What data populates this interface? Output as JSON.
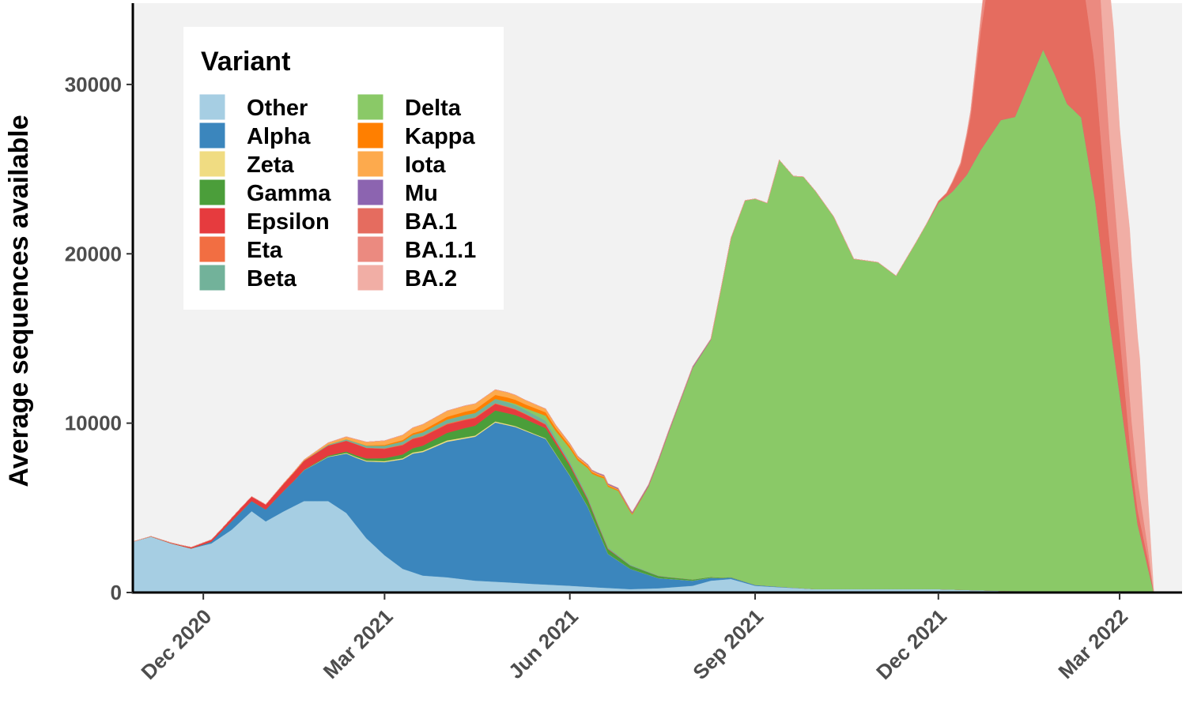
{
  "chart_data": {
    "type": "area",
    "stacked": true,
    "title": "",
    "xlabel": "",
    "ylabel": "Average sequences available",
    "ylim": [
      0,
      34800
    ],
    "xlim": [
      "2020-10-27",
      "2022-04-01"
    ],
    "y_ticks": [
      0,
      10000,
      20000,
      30000
    ],
    "y_tick_labels": [
      "0",
      "10000",
      "20000",
      "30000"
    ],
    "x_ticks": [
      "2020-12-01",
      "2021-03-01",
      "2021-06-01",
      "2021-09-01",
      "2021-12-01",
      "2022-03-01"
    ],
    "x_tick_labels": [
      "Dec 2020",
      "Mar 2021",
      "Jun 2021",
      "Sep 2021",
      "Dec 2021",
      "Mar 2022"
    ],
    "grid": false,
    "legend": {
      "title": "Variant",
      "position": "top-left",
      "columns": 2
    },
    "series": [
      {
        "name": "Other",
        "color": "#a6cee3",
        "points": [
          [
            "2020-10-27",
            3000
          ],
          [
            "2020-11-05",
            3300
          ],
          [
            "2020-11-15",
            2900
          ],
          [
            "2020-11-25",
            2600
          ],
          [
            "2020-12-05",
            2900
          ],
          [
            "2020-12-15",
            3700
          ],
          [
            "2020-12-25",
            4800
          ],
          [
            "2021-01-01",
            4200
          ],
          [
            "2021-01-10",
            4800
          ],
          [
            "2021-01-20",
            5400
          ],
          [
            "2021-02-01",
            5400
          ],
          [
            "2021-02-10",
            4700
          ],
          [
            "2021-02-20",
            3200
          ],
          [
            "2021-03-01",
            2200
          ],
          [
            "2021-03-10",
            1400
          ],
          [
            "2021-03-20",
            1000
          ],
          [
            "2021-04-01",
            900
          ],
          [
            "2021-04-15",
            700
          ],
          [
            "2021-05-01",
            600
          ],
          [
            "2021-05-15",
            500
          ],
          [
            "2021-06-01",
            400
          ],
          [
            "2021-06-15",
            300
          ],
          [
            "2021-07-01",
            200
          ],
          [
            "2021-07-15",
            250
          ],
          [
            "2021-08-01",
            400
          ],
          [
            "2021-08-10",
            700
          ],
          [
            "2021-08-20",
            800
          ],
          [
            "2021-09-01",
            400
          ],
          [
            "2021-09-15",
            300
          ],
          [
            "2021-10-01",
            200
          ],
          [
            "2021-11-01",
            200
          ],
          [
            "2021-12-01",
            200
          ],
          [
            "2022-01-01",
            100
          ],
          [
            "2022-02-01",
            50
          ],
          [
            "2022-03-01",
            50
          ],
          [
            "2022-03-18",
            0
          ]
        ]
      },
      {
        "name": "Alpha",
        "color": "#3b86bd",
        "points": [
          [
            "2020-10-27",
            0
          ],
          [
            "2020-11-25",
            0
          ],
          [
            "2020-12-05",
            100
          ],
          [
            "2020-12-15",
            500
          ],
          [
            "2020-12-25",
            600
          ],
          [
            "2021-01-01",
            700
          ],
          [
            "2021-01-15",
            1500
          ],
          [
            "2021-02-01",
            2600
          ],
          [
            "2021-02-15",
            4000
          ],
          [
            "2021-03-01",
            5500
          ],
          [
            "2021-03-15",
            7000
          ],
          [
            "2021-04-01",
            8000
          ],
          [
            "2021-04-15",
            8500
          ],
          [
            "2021-04-25",
            9400
          ],
          [
            "2021-05-05",
            9200
          ],
          [
            "2021-05-20",
            8600
          ],
          [
            "2021-06-01",
            6500
          ],
          [
            "2021-06-10",
            4700
          ],
          [
            "2021-06-20",
            2000
          ],
          [
            "2021-07-01",
            1200
          ],
          [
            "2021-07-15",
            600
          ],
          [
            "2021-08-01",
            300
          ],
          [
            "2021-08-15",
            100
          ],
          [
            "2021-09-01",
            50
          ],
          [
            "2021-10-01",
            0
          ],
          [
            "2022-03-18",
            0
          ]
        ]
      },
      {
        "name": "Zeta",
        "color": "#f0dc82",
        "points": [
          [
            "2020-10-27",
            0
          ],
          [
            "2021-01-15",
            0
          ],
          [
            "2021-02-15",
            50
          ],
          [
            "2021-04-01",
            80
          ],
          [
            "2021-05-01",
            60
          ],
          [
            "2021-06-01",
            20
          ],
          [
            "2021-07-01",
            0
          ],
          [
            "2022-03-18",
            0
          ]
        ]
      },
      {
        "name": "Gamma",
        "color": "#4b9e3a",
        "points": [
          [
            "2020-10-27",
            0
          ],
          [
            "2021-01-15",
            0
          ],
          [
            "2021-02-15",
            100
          ],
          [
            "2021-03-15",
            250
          ],
          [
            "2021-04-10",
            550
          ],
          [
            "2021-04-25",
            650
          ],
          [
            "2021-05-10",
            650
          ],
          [
            "2021-05-20",
            600
          ],
          [
            "2021-06-01",
            550
          ],
          [
            "2021-06-15",
            300
          ],
          [
            "2021-07-01",
            200
          ],
          [
            "2021-07-20",
            100
          ],
          [
            "2021-08-10",
            50
          ],
          [
            "2021-09-01",
            0
          ],
          [
            "2022-03-18",
            0
          ]
        ]
      },
      {
        "name": "Epsilon",
        "color": "#e63b3e",
        "points": [
          [
            "2020-10-27",
            0
          ],
          [
            "2020-11-20",
            50
          ],
          [
            "2020-12-10",
            150
          ],
          [
            "2020-12-20",
            250
          ],
          [
            "2021-01-01",
            300
          ],
          [
            "2021-01-15",
            500
          ],
          [
            "2021-02-01",
            600
          ],
          [
            "2021-02-15",
            650
          ],
          [
            "2021-03-01",
            550
          ],
          [
            "2021-03-15",
            550
          ],
          [
            "2021-04-01",
            500
          ],
          [
            "2021-04-15",
            450
          ],
          [
            "2021-05-01",
            350
          ],
          [
            "2021-05-15",
            250
          ],
          [
            "2021-06-01",
            100
          ],
          [
            "2021-06-15",
            50
          ],
          [
            "2021-07-01",
            0
          ],
          [
            "2022-03-18",
            0
          ]
        ]
      },
      {
        "name": "Eta",
        "color": "#f26e42",
        "points": [
          [
            "2020-10-27",
            0
          ],
          [
            "2021-02-01",
            0
          ],
          [
            "2021-03-01",
            30
          ],
          [
            "2021-04-01",
            50
          ],
          [
            "2021-05-01",
            40
          ],
          [
            "2021-06-01",
            20
          ],
          [
            "2021-07-01",
            0
          ],
          [
            "2022-03-18",
            0
          ]
        ]
      },
      {
        "name": "Beta",
        "color": "#72b29a",
        "points": [
          [
            "2020-10-27",
            0
          ],
          [
            "2021-01-15",
            0
          ],
          [
            "2021-02-15",
            100
          ],
          [
            "2021-03-15",
            200
          ],
          [
            "2021-04-10",
            250
          ],
          [
            "2021-05-01",
            250
          ],
          [
            "2021-05-20",
            200
          ],
          [
            "2021-06-10",
            100
          ],
          [
            "2021-07-01",
            50
          ],
          [
            "2021-08-01",
            0
          ],
          [
            "2022-03-18",
            0
          ]
        ]
      },
      {
        "name": "Delta",
        "color": "#8ac967",
        "points": [
          [
            "2020-10-27",
            0
          ],
          [
            "2021-04-25",
            0
          ],
          [
            "2021-05-10",
            100
          ],
          [
            "2021-05-25",
            400
          ],
          [
            "2021-06-05",
            1000
          ],
          [
            "2021-06-12",
            2000
          ],
          [
            "2021-06-18",
            3500
          ],
          [
            "2021-06-25",
            3800
          ],
          [
            "2021-07-02",
            3000
          ],
          [
            "2021-07-10",
            5000
          ],
          [
            "2021-07-20",
            8500
          ],
          [
            "2021-08-01",
            12500
          ],
          [
            "2021-08-10",
            14000
          ],
          [
            "2021-08-20",
            20000
          ],
          [
            "2021-08-27",
            22500
          ],
          [
            "2021-09-01",
            22800
          ],
          [
            "2021-09-07",
            22600
          ],
          [
            "2021-09-13",
            25200
          ],
          [
            "2021-09-20",
            24300
          ],
          [
            "2021-09-25",
            24300
          ],
          [
            "2021-10-01",
            23500
          ],
          [
            "2021-10-10",
            22000
          ],
          [
            "2021-10-20",
            19500
          ],
          [
            "2021-11-01",
            19300
          ],
          [
            "2021-11-10",
            18500
          ],
          [
            "2021-11-20",
            20500
          ],
          [
            "2021-12-01",
            22800
          ],
          [
            "2021-12-08",
            23500
          ],
          [
            "2021-12-15",
            24500
          ],
          [
            "2021-12-22",
            26000
          ],
          [
            "2022-01-01",
            27800
          ],
          [
            "2022-01-08",
            28000
          ],
          [
            "2022-01-15",
            30000
          ],
          [
            "2022-01-22",
            32000
          ],
          [
            "2022-01-28",
            30500
          ],
          [
            "2022-02-03",
            28800
          ],
          [
            "2022-02-10",
            28000
          ],
          [
            "2022-02-17",
            23000
          ],
          [
            "2022-02-24",
            16000
          ],
          [
            "2022-03-03",
            10000
          ],
          [
            "2022-03-10",
            4000
          ],
          [
            "2022-03-18",
            0
          ]
        ]
      },
      {
        "name": "Kappa",
        "color": "#ff7f00",
        "points": [
          [
            "2020-10-27",
            0
          ],
          [
            "2021-02-15",
            0
          ],
          [
            "2021-03-15",
            100
          ],
          [
            "2021-04-10",
            200
          ],
          [
            "2021-05-01",
            250
          ],
          [
            "2021-05-20",
            200
          ],
          [
            "2021-06-10",
            100
          ],
          [
            "2021-07-01",
            50
          ],
          [
            "2021-08-01",
            0
          ],
          [
            "2022-03-18",
            0
          ]
        ]
      },
      {
        "name": "Iota",
        "color": "#fdaa4d",
        "points": [
          [
            "2020-10-27",
            0
          ],
          [
            "2021-01-01",
            0
          ],
          [
            "2021-01-20",
            50
          ],
          [
            "2021-02-10",
            150
          ],
          [
            "2021-03-01",
            250
          ],
          [
            "2021-03-20",
            350
          ],
          [
            "2021-04-10",
            350
          ],
          [
            "2021-05-01",
            300
          ],
          [
            "2021-05-20",
            200
          ],
          [
            "2021-06-05",
            100
          ],
          [
            "2021-06-20",
            50
          ],
          [
            "2021-07-10",
            0
          ],
          [
            "2022-03-18",
            0
          ]
        ]
      },
      {
        "name": "Mu",
        "color": "#8c64b0",
        "points": [
          [
            "2020-10-27",
            0
          ],
          [
            "2021-05-15",
            0
          ],
          [
            "2021-06-15",
            50
          ],
          [
            "2021-07-15",
            100
          ],
          [
            "2021-08-01",
            80
          ],
          [
            "2021-08-15",
            40
          ],
          [
            "2021-09-01",
            0
          ],
          [
            "2022-03-18",
            0
          ]
        ]
      },
      {
        "name": "BA.1",
        "color": "#e56c5f",
        "points": [
          [
            "2020-10-27",
            0
          ],
          [
            "2021-11-25",
            0
          ],
          [
            "2021-12-05",
            200
          ],
          [
            "2021-12-12",
            1000
          ],
          [
            "2021-12-17",
            3000
          ],
          [
            "2021-12-22",
            7000
          ],
          [
            "2021-12-27",
            10000
          ],
          [
            "2022-01-01",
            12500
          ],
          [
            "2022-01-06",
            14000
          ],
          [
            "2022-01-13",
            12000
          ],
          [
            "2022-01-18",
            12000
          ],
          [
            "2022-01-25",
            10000
          ],
          [
            "2022-02-01",
            8500
          ],
          [
            "2022-02-08",
            9000
          ],
          [
            "2022-02-16",
            8000
          ],
          [
            "2022-02-23",
            5000
          ],
          [
            "2022-03-01",
            3500
          ],
          [
            "2022-03-07",
            1000
          ],
          [
            "2022-03-15",
            500
          ],
          [
            "2022-03-18",
            0
          ]
        ]
      },
      {
        "name": "BA.1.1",
        "color": "#eb8a80",
        "points": [
          [
            "2020-10-27",
            0
          ],
          [
            "2021-12-05",
            0
          ],
          [
            "2021-12-15",
            200
          ],
          [
            "2021-12-22",
            700
          ],
          [
            "2021-12-29",
            2500
          ],
          [
            "2022-01-05",
            5500
          ],
          [
            "2022-01-10",
            9500
          ],
          [
            "2022-01-15",
            10500
          ],
          [
            "2022-01-20",
            11500
          ],
          [
            "2022-01-28",
            10000
          ],
          [
            "2022-02-03",
            10800
          ],
          [
            "2022-02-10",
            10500
          ],
          [
            "2022-02-17",
            9500
          ],
          [
            "2022-02-24",
            6000
          ],
          [
            "2022-03-03",
            3500
          ],
          [
            "2022-03-10",
            1800
          ],
          [
            "2022-03-18",
            0
          ]
        ]
      },
      {
        "name": "BA.2",
        "color": "#f1aea5",
        "points": [
          [
            "2020-10-27",
            0
          ],
          [
            "2021-12-15",
            0
          ],
          [
            "2021-12-22",
            100
          ],
          [
            "2022-01-01",
            200
          ],
          [
            "2022-01-10",
            500
          ],
          [
            "2022-01-20",
            1800
          ],
          [
            "2022-01-28",
            3000
          ],
          [
            "2022-02-04",
            3500
          ],
          [
            "2022-02-12",
            5800
          ],
          [
            "2022-02-20",
            8000
          ],
          [
            "2022-02-26",
            9400
          ],
          [
            "2022-03-01",
            8000
          ],
          [
            "2022-03-06",
            9800
          ],
          [
            "2022-03-11",
            8000
          ],
          [
            "2022-03-15",
            3000
          ],
          [
            "2022-03-18",
            0
          ]
        ]
      }
    ]
  }
}
